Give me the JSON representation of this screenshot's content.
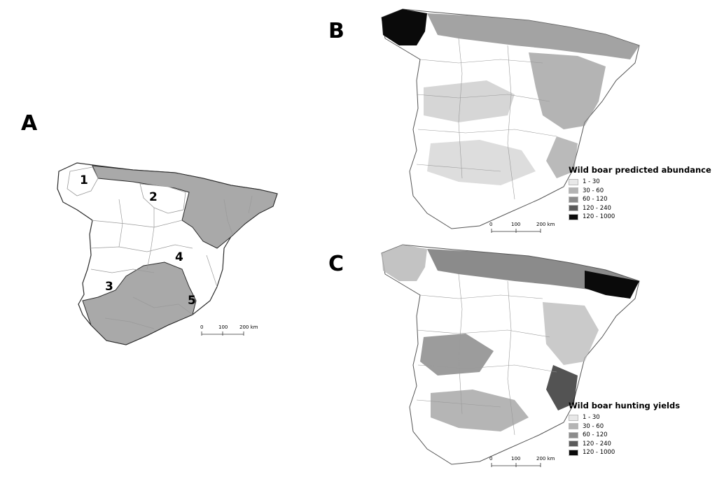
{
  "panels": [
    {
      "letter": "A",
      "region_labels": [
        "1",
        "2",
        "3",
        "4",
        "5"
      ]
    },
    {
      "letter": "B"
    },
    {
      "letter": "C"
    }
  ],
  "legends": [
    {
      "title": "Wild boar predicted abundance",
      "classes": [
        {
          "label": "1 - 30",
          "color": "#e8e8e8"
        },
        {
          "label": "30 - 60",
          "color": "#b4b4b4"
        },
        {
          "label": "60 - 120",
          "color": "#8c8c8c"
        },
        {
          "label": "120 - 240",
          "color": "#5a5a5a"
        },
        {
          "label": "120 - 1000",
          "color": "#0a0a0a"
        }
      ]
    },
    {
      "title": "Wild boar hunting yields",
      "classes": [
        {
          "label": "1 - 30",
          "color": "#e8e8e8"
        },
        {
          "label": "30 - 60",
          "color": "#b4b4b4"
        },
        {
          "label": "60 - 120",
          "color": "#8c8c8c"
        },
        {
          "label": "120 - 240",
          "color": "#5a5a5a"
        },
        {
          "label": "120 - 1000",
          "color": "#0a0a0a"
        }
      ]
    }
  ],
  "scale_bar": {
    "labels": [
      "0",
      "100",
      "200 km"
    ]
  },
  "colors": {
    "shaded_region": "#a9a9a9",
    "outline": "#2a2a2a",
    "province_lines": "#9a9a9a"
  }
}
